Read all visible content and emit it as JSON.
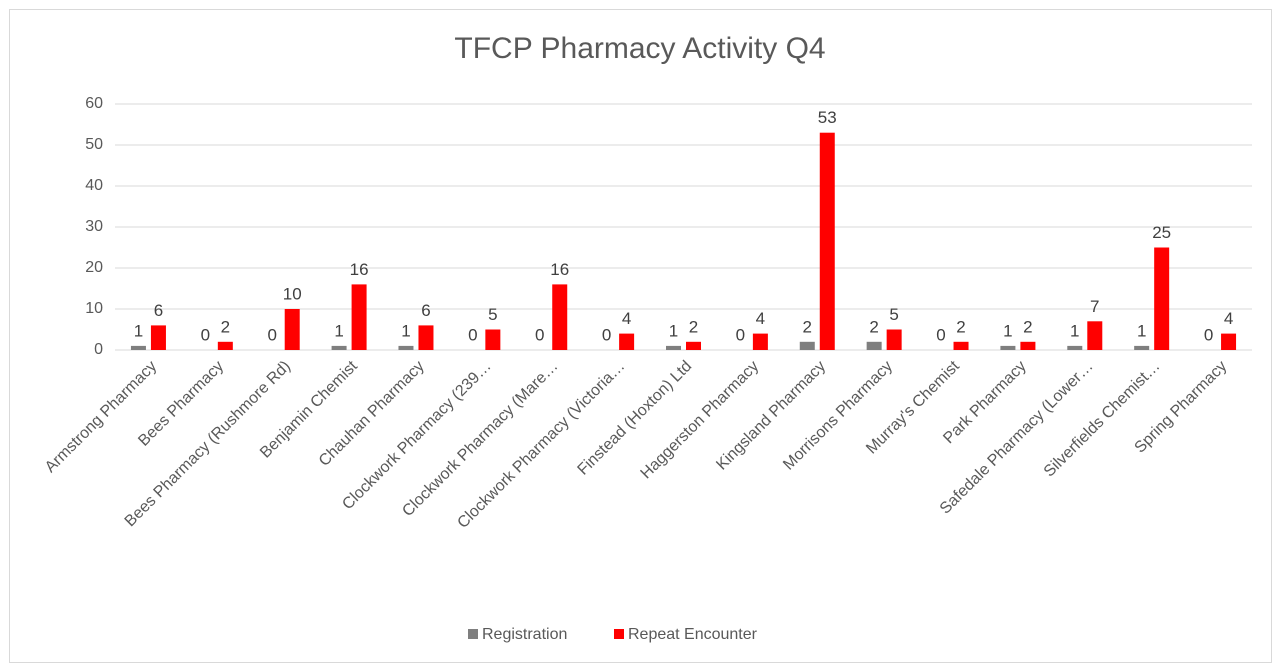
{
  "chart_data": {
    "type": "bar",
    "title": "TFCP Pharmacy Activity Q4",
    "categories": [
      "Armstrong Pharmacy",
      "Bees Pharmacy",
      "Bees Pharmacy (Rushmore Rd)",
      "Benjamin Chemist",
      "Chauhan Pharmacy",
      "Clockwork Pharmacy (239…",
      "Clockwork Pharmacy (Mare…",
      "Clockwork Pharmacy (Victoria…",
      "Finstead (Hoxton) Ltd",
      "Haggerston Pharmacy",
      "Kingsland Pharmacy",
      "Morrisons Pharmacy",
      "Murray's Chemist",
      "Park Pharmacy",
      "Safedale Pharmacy (Lower…",
      "Silverfields Chemist…",
      "Spring Pharmacy"
    ],
    "series": [
      {
        "name": "Registration",
        "color": "#7f7f7f",
        "values": [
          1,
          0,
          0,
          1,
          1,
          0,
          0,
          0,
          1,
          0,
          2,
          2,
          0,
          1,
          1,
          1,
          0
        ]
      },
      {
        "name": "Repeat Encounter",
        "color": "#ff0000",
        "values": [
          6,
          2,
          10,
          16,
          6,
          5,
          16,
          4,
          2,
          4,
          53,
          5,
          2,
          2,
          7,
          25,
          4
        ]
      }
    ],
    "ylim": [
      0,
      60
    ],
    "yticks": [
      0,
      10,
      20,
      30,
      40,
      50,
      60
    ],
    "grid": true,
    "legend": "bottom"
  }
}
